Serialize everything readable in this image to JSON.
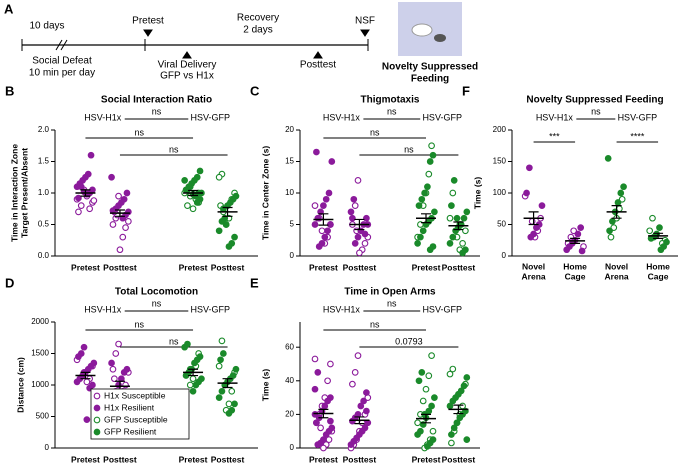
{
  "timeline": {
    "panel": "A",
    "period": "10 days",
    "defeat": [
      "Social Defeat",
      "10 min per day"
    ],
    "pretest": "Pretest",
    "viral": [
      "Viral Delivery",
      "GFP vs H1x"
    ],
    "recovery": [
      "Recovery",
      "2 days"
    ],
    "posttest": "Posttest",
    "nsf": "NSF",
    "nsf_label": [
      "Novelty Suppressed",
      "Feeding"
    ]
  },
  "chart_data": [
    {
      "type": "dot",
      "panel": "B",
      "title": "Social Interaction Ratio",
      "ylabel": [
        "Time in Interaction Zone",
        "Target Present/Absent"
      ],
      "ylim": [
        0,
        2
      ],
      "yticks": [
        {
          "value": 0,
          "label": "0.0"
        },
        0.5,
        {
          "value": 1,
          "label": "1.0"
        },
        1.5,
        {
          "value": 2,
          "label": "2.0"
        }
      ],
      "groups": [
        "HSV-H1x",
        "HSV-GFP"
      ],
      "group_comparison": "ns",
      "comparisons": [
        {
          "from": 0,
          "to": 2,
          "label": "ns"
        },
        {
          "from": 1,
          "to": 3,
          "label": "ns"
        }
      ],
      "columns": [
        {
          "label": "Pretest",
          "color": "#8b1a9b",
          "mean": 1.0,
          "sem": 0.05,
          "susceptible": [
            0.9,
            0.85,
            0.75,
            0.95,
            1.05,
            0.8,
            0.7,
            0.88
          ],
          "resilient": [
            1.6,
            1.3,
            1.25,
            1.2,
            1.15,
            1.1,
            1.05,
            1.0,
            0.98,
            1.02,
            1.1,
            0.92
          ]
        },
        {
          "label": "Posttest",
          "color": "#8b1a9b",
          "mean": 0.68,
          "sem": 0.05,
          "susceptible": [
            0.95,
            0.6,
            0.5,
            0.55,
            0.45,
            0.3,
            0.1,
            0.65,
            0.7
          ],
          "resilient": [
            1.25,
            1.0,
            0.9,
            0.85,
            0.8,
            0.75,
            0.72,
            0.7,
            0.65,
            0.6
          ]
        },
        {
          "label": "Pretest",
          "color": "#1a8a2a",
          "mean": 1.0,
          "sem": 0.04,
          "susceptible": [
            0.85,
            0.9,
            0.75,
            0.95,
            0.8,
            1.0
          ],
          "resilient": [
            1.35,
            1.25,
            1.2,
            1.15,
            1.1,
            1.05,
            1.0,
            1.0,
            0.95,
            0.98,
            1.1,
            1.05,
            1.2,
            0.9,
            0.85
          ]
        },
        {
          "label": "Posttest",
          "color": "#1a8a2a",
          "mean": 0.7,
          "sem": 0.07,
          "susceptible": [
            1.3,
            1.25,
            1.0,
            0.9,
            0.6,
            0.5,
            0.7,
            0.8
          ],
          "resilient": [
            0.95,
            0.9,
            0.85,
            0.8,
            0.6,
            0.55,
            0.4,
            0.3,
            0.2,
            0.15,
            0.5,
            0.75
          ]
        }
      ]
    },
    {
      "type": "dot",
      "panel": "C",
      "title": "Thigmotaxis",
      "ylabel": [
        "Time in Center Zone (s)"
      ],
      "ylim": [
        0,
        20
      ],
      "yticks": [
        0,
        5,
        10,
        15,
        20
      ],
      "groups": [
        "HSV-H1x",
        "HSV-GFP"
      ],
      "group_comparison": "ns",
      "comparisons": [
        {
          "from": 0,
          "to": 2,
          "label": "ns"
        },
        {
          "from": 1,
          "to": 3,
          "label": "ns"
        }
      ],
      "columns": [
        {
          "label": "Pretest",
          "color": "#8b1a9b",
          "mean": 5.8,
          "sem": 0.9,
          "susceptible": [
            8,
            5,
            3,
            2,
            4,
            6
          ],
          "resilient": [
            16.5,
            15,
            10,
            9,
            8,
            7,
            6,
            5,
            5,
            4,
            3,
            2,
            1.5
          ]
        },
        {
          "label": "Posttest",
          "color": "#8b1a9b",
          "mean": 5.0,
          "sem": 0.8,
          "susceptible": [
            12,
            8,
            5,
            3,
            2,
            1,
            0.5,
            4
          ],
          "resilient": [
            9,
            7,
            6,
            5,
            4,
            3,
            2,
            6,
            5,
            3.5
          ]
        },
        {
          "label": "Pretest",
          "color": "#1a8a2a",
          "mean": 6.0,
          "sem": 0.7,
          "susceptible": [
            17.5,
            13,
            10,
            8,
            5,
            3
          ],
          "resilient": [
            16,
            15,
            11,
            10,
            9,
            8,
            7,
            6,
            5.5,
            5,
            4,
            3,
            2,
            1.5,
            1
          ]
        },
        {
          "label": "Posttest",
          "color": "#1a8a2a",
          "mean": 4.8,
          "sem": 0.6,
          "susceptible": [
            10,
            6,
            4,
            2,
            1,
            3
          ],
          "resilient": [
            12,
            8,
            7,
            6,
            5,
            4.5,
            4,
            3,
            2,
            1,
            0.5,
            5,
            6
          ]
        }
      ]
    },
    {
      "type": "dot",
      "panel": "D",
      "title": "Total Locomotion",
      "ylabel": [
        "Distance (cm)"
      ],
      "ylim": [
        0,
        2000
      ],
      "yticks": [
        0,
        500,
        1000,
        1500,
        2000
      ],
      "groups": [
        "HSV-H1x",
        "HSV-GFP"
      ],
      "group_comparison": "ns",
      "comparisons": [
        {
          "from": 0,
          "to": 2,
          "label": "ns"
        },
        {
          "from": 1,
          "to": 3,
          "label": "ns"
        }
      ],
      "legend": [
        {
          "name": "H1x Susceptible",
          "color": "#8b1a9b",
          "filled": false
        },
        {
          "name": "H1x Resilient",
          "color": "#8b1a9b",
          "filled": true
        },
        {
          "name": "GFP Susceptible",
          "color": "#1a8a2a",
          "filled": false
        },
        {
          "name": "GFP Resilient",
          "color": "#1a8a2a",
          "filled": true
        }
      ],
      "columns": [
        {
          "label": "Pretest",
          "color": "#8b1a9b",
          "mean": 1150,
          "sem": 50,
          "susceptible": [
            1400,
            1300,
            1100,
            1050
          ],
          "resilient": [
            1600,
            1500,
            1450,
            1350,
            1300,
            1250,
            1200,
            1150,
            1100,
            1050,
            1000,
            950,
            450,
            1200
          ]
        },
        {
          "label": "Posttest",
          "color": "#8b1a9b",
          "mean": 980,
          "sem": 80,
          "susceptible": [
            1650,
            1500,
            1250,
            1200,
            1000,
            900,
            650,
            400,
            1100
          ],
          "resilient": [
            1350,
            1250,
            1200,
            1100,
            1000,
            900,
            800,
            600
          ]
        },
        {
          "label": "Pretest",
          "color": "#1a8a2a",
          "mean": 1200,
          "sem": 50,
          "susceptible": [
            1500,
            1300,
            1100,
            1000
          ],
          "resilient": [
            1650,
            1600,
            1450,
            1400,
            1350,
            1250,
            1200,
            1150,
            1100,
            1050,
            1000,
            900,
            1250
          ]
        },
        {
          "label": "Posttest",
          "color": "#1a8a2a",
          "mean": 1030,
          "sem": 70,
          "susceptible": [
            1700,
            1300,
            1200,
            900,
            700,
            600
          ],
          "resilient": [
            1500,
            1400,
            1250,
            1150,
            1100,
            1050,
            1000,
            900,
            800,
            700,
            600,
            550
          ]
        }
      ]
    },
    {
      "type": "dot",
      "panel": "E",
      "title": "Time in Open Arms",
      "ylabel": [
        "Time (s)"
      ],
      "ylim": [
        0,
        75
      ],
      "yticks": [
        0,
        20,
        40,
        60
      ],
      "groups": [
        "HSV-H1x",
        "HSV-GFP"
      ],
      "group_comparison": "ns",
      "comparisons": [
        {
          "from": 0,
          "to": 2,
          "label": "ns"
        },
        {
          "from": 1,
          "to": 3,
          "label": "0.0793"
        }
      ],
      "columns": [
        {
          "label": "Pretest",
          "color": "#8b1a9b",
          "mean": 20.5,
          "sem": 2.5,
          "susceptible": [
            53,
            50,
            40,
            30,
            25,
            20,
            15,
            10,
            5,
            2,
            0,
            12
          ],
          "resilient": [
            45,
            35,
            30,
            28,
            25,
            22,
            18,
            15,
            12,
            10,
            8,
            5,
            3,
            2,
            20,
            16
          ]
        },
        {
          "label": "Posttest",
          "color": "#8b1a9b",
          "mean": 16.5,
          "sem": 2,
          "susceptible": [
            55,
            45,
            38,
            30,
            20,
            15,
            10,
            5,
            2,
            0
          ],
          "resilient": [
            33,
            28,
            25,
            20,
            18,
            16,
            15,
            12,
            10,
            8,
            6,
            4,
            2,
            22
          ]
        },
        {
          "label": "Pretest",
          "color": "#1a8a2a",
          "mean": 17.5,
          "sem": 2.5,
          "susceptible": [
            55,
            43,
            35,
            28,
            20,
            15,
            10,
            5,
            2,
            0
          ],
          "resilient": [
            45,
            40,
            30,
            25,
            22,
            18,
            14,
            10,
            8,
            5,
            3,
            1,
            20
          ]
        },
        {
          "label": "Posttest",
          "color": "#1a8a2a",
          "mean": 23,
          "sem": 2.5,
          "susceptible": [
            47,
            44,
            38,
            25,
            20,
            15,
            10,
            3
          ],
          "resilient": [
            42,
            37,
            34,
            32,
            30,
            28,
            25,
            22,
            20,
            18,
            15,
            12,
            8,
            5
          ]
        }
      ]
    },
    {
      "type": "dot",
      "panel": "F",
      "title": "Novelty Suppressed Feeding",
      "ylabel": [
        "Time (s)"
      ],
      "ylim": [
        0,
        200
      ],
      "yticks": [
        0,
        50,
        100,
        150,
        200
      ],
      "groups": [
        "HSV-H1x",
        "HSV-GFP"
      ],
      "group_comparison": "ns",
      "comparisons": [
        {
          "from": 0,
          "to": 1,
          "label": "***"
        },
        {
          "from": 2,
          "to": 3,
          "label": "****"
        }
      ],
      "columns": [
        {
          "label": [
            "Novel",
            "Arena"
          ],
          "color": "#8b1a9b",
          "mean": 60,
          "sem": 10,
          "susceptible": [
            95,
            60,
            40,
            30,
            55
          ],
          "resilient": [
            140,
            100,
            80,
            50,
            45,
            35,
            30
          ]
        },
        {
          "label": [
            "Home",
            "Cage"
          ],
          "color": "#8b1a9b",
          "mean": 24,
          "sem": 4,
          "susceptible": [
            40,
            30,
            20,
            15
          ],
          "resilient": [
            45,
            35,
            25,
            20,
            15,
            10,
            8
          ]
        },
        {
          "label": [
            "Novel",
            "Arena"
          ],
          "color": "#1a8a2a",
          "mean": 70,
          "sem": 10,
          "susceptible": [
            90,
            75,
            60,
            45,
            30
          ],
          "resilient": [
            155,
            110,
            100,
            85,
            70,
            55,
            40
          ]
        },
        {
          "label": [
            "Home",
            "Cage"
          ],
          "color": "#1a8a2a",
          "mean": 32,
          "sem": 4,
          "susceptible": [
            60,
            40,
            25,
            20
          ],
          "resilient": [
            45,
            35,
            30,
            28,
            22,
            15,
            10
          ]
        }
      ]
    }
  ]
}
